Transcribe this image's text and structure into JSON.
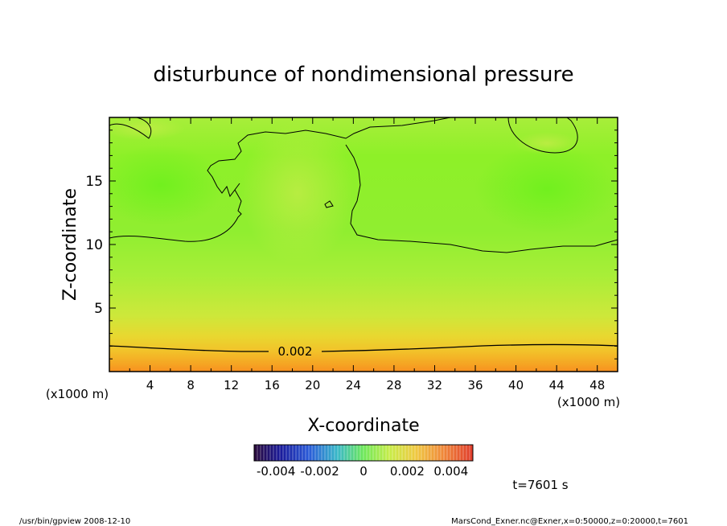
{
  "chart_data": {
    "type": "heatmap",
    "title": "disturbunce of nondimensional pressure",
    "xlabel": "X-coordinate",
    "ylabel": "Z-coordinate",
    "x_unit": "(x1000 m)",
    "y_unit": "(x1000 m)",
    "xlim": [
      0,
      50
    ],
    "ylim": [
      0,
      20
    ],
    "xticks": [
      "4",
      "8",
      "12",
      "16",
      "20",
      "24",
      "28",
      "32",
      "36",
      "40",
      "44",
      "48"
    ],
    "yticks": [
      "5",
      "10",
      "15"
    ],
    "contour_label": "0.002",
    "colorbar": {
      "range": [
        -0.005,
        0.005
      ],
      "tick_labels": [
        "-0.004",
        "-0.002",
        "0",
        "0.002",
        "0.004"
      ]
    },
    "field_description": {
      "surface_value": 0.004,
      "near_surface_contour_z": 1.8,
      "interior_value": 0.0,
      "upper_value": -0.0003
    }
  },
  "footer": {
    "time_label": "t=7601 s",
    "left": "/usr/bin/gpview   2008-12-10",
    "right": "MarsCond_Exner.nc@Exner,x=0:50000,z=0:20000,t=7601"
  }
}
